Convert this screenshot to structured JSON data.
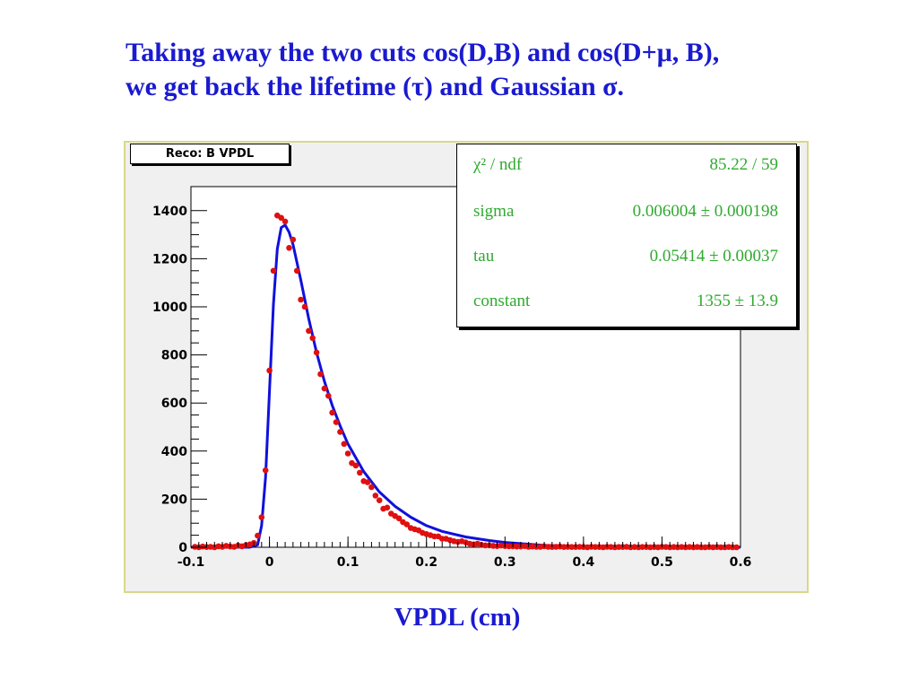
{
  "title": {
    "line1": "Taking away the two cuts cos(D,B) and cos(D+μ, B),",
    "line2": "we get back the lifetime (τ) and Gaussian σ."
  },
  "histogram_label": "Reco: B VPDL",
  "stats": [
    {
      "key": "χ² / ndf",
      "value": "85.22 / 59"
    },
    {
      "key": "sigma",
      "value": "0.006004 ± 0.000198"
    },
    {
      "key": "tau",
      "value": "0.05414 ± 0.00037"
    },
    {
      "key": "constant",
      "value": "1355 ± 13.9"
    }
  ],
  "colors": {
    "title": "#1a1ad0",
    "points": "#e01010",
    "fit": "#1010dd",
    "stats_text": "#2faa2f"
  },
  "chart_data": {
    "type": "scatter",
    "title": "Reco: B VPDL",
    "xlabel": "VPDL (cm)",
    "ylabel": "",
    "xlim": [
      -0.1,
      0.6
    ],
    "ylim": [
      0,
      1500
    ],
    "xticks": [
      -0.1,
      0,
      0.1,
      0.2,
      0.3,
      0.4,
      0.5,
      0.6
    ],
    "xtick_labels": [
      "-0.1",
      "0",
      "0.1",
      "0.2",
      "0.3",
      "0.4",
      "0.5",
      "0.6"
    ],
    "yticks": [
      0,
      200,
      400,
      600,
      800,
      1000,
      1200,
      1400
    ],
    "ytick_labels": [
      "0",
      "200",
      "400",
      "600",
      "800",
      "1000",
      "1200",
      "1400"
    ],
    "grid": false,
    "series": [
      {
        "kind": "points",
        "x": [
          -0.095,
          -0.09,
          -0.085,
          -0.08,
          -0.075,
          -0.07,
          -0.065,
          -0.06,
          -0.055,
          -0.05,
          -0.045,
          -0.04,
          -0.035,
          -0.03,
          -0.025,
          -0.02,
          -0.015,
          -0.01,
          -0.005,
          0.0,
          0.005,
          0.01,
          0.015,
          0.02,
          0.025,
          0.03,
          0.035,
          0.04,
          0.045,
          0.05,
          0.055,
          0.06,
          0.065,
          0.07,
          0.075,
          0.08,
          0.085,
          0.09,
          0.095,
          0.1,
          0.105,
          0.11,
          0.115,
          0.12,
          0.125,
          0.13,
          0.135,
          0.14,
          0.145,
          0.15,
          0.155,
          0.16,
          0.165,
          0.17,
          0.175,
          0.18,
          0.185,
          0.19,
          0.195,
          0.2,
          0.205,
          0.21,
          0.215,
          0.22,
          0.225,
          0.23,
          0.235,
          0.24,
          0.245,
          0.25,
          0.255,
          0.26,
          0.265,
          0.27,
          0.275,
          0.28,
          0.285,
          0.29,
          0.295,
          0.3,
          0.305,
          0.31,
          0.315,
          0.32,
          0.325,
          0.33,
          0.335,
          0.34,
          0.345,
          0.35,
          0.355,
          0.36,
          0.365,
          0.37,
          0.375,
          0.38,
          0.385,
          0.39,
          0.395,
          0.4,
          0.405,
          0.41,
          0.415,
          0.42,
          0.425,
          0.43,
          0.435,
          0.44,
          0.445,
          0.45,
          0.455,
          0.46,
          0.465,
          0.47,
          0.475,
          0.48,
          0.485,
          0.49,
          0.495,
          0.5,
          0.505,
          0.51,
          0.515,
          0.52,
          0.525,
          0.53,
          0.535,
          0.54,
          0.545,
          0.55,
          0.555,
          0.56,
          0.565,
          0.57,
          0.575,
          0.58,
          0.585,
          0.59,
          0.595
        ],
        "y": [
          2,
          0,
          3,
          1,
          2,
          0,
          4,
          2,
          6,
          3,
          2,
          7,
          4,
          9,
          12,
          18,
          48,
          125,
          320,
          735,
          1150,
          1380,
          1370,
          1355,
          1245,
          1280,
          1150,
          1030,
          1000,
          900,
          870,
          810,
          720,
          660,
          630,
          560,
          520,
          480,
          430,
          390,
          350,
          340,
          310,
          275,
          270,
          250,
          215,
          195,
          160,
          165,
          140,
          130,
          120,
          105,
          95,
          80,
          75,
          70,
          60,
          55,
          50,
          45,
          45,
          35,
          35,
          30,
          25,
          22,
          25,
          20,
          15,
          12,
          15,
          10,
          8,
          8,
          6,
          5,
          7,
          5,
          4,
          4,
          3,
          3,
          5,
          2,
          3,
          2,
          2,
          4,
          2,
          1,
          2,
          3,
          1,
          2,
          1,
          1,
          2,
          1,
          0,
          2,
          1,
          1,
          0,
          2,
          1,
          0,
          1,
          1,
          2,
          0,
          1,
          0,
          1,
          1,
          0,
          1,
          0,
          2,
          1,
          0,
          1,
          0,
          1,
          0,
          1,
          0,
          1,
          0,
          0,
          1,
          0,
          1,
          0,
          0,
          1,
          0,
          0
        ]
      },
      {
        "kind": "fit",
        "x": [
          -0.1,
          -0.05,
          -0.025,
          -0.015,
          -0.01,
          -0.005,
          0.0,
          0.005,
          0.01,
          0.015,
          0.02,
          0.025,
          0.03,
          0.04,
          0.05,
          0.06,
          0.07,
          0.08,
          0.09,
          0.1,
          0.12,
          0.14,
          0.16,
          0.18,
          0.2,
          0.22,
          0.25,
          0.28,
          0.3,
          0.35,
          0.4,
          0.5,
          0.6
        ],
        "y": [
          0,
          0,
          0,
          10,
          90,
          290,
          650,
          1010,
          1240,
          1330,
          1340,
          1310,
          1260,
          1110,
          950,
          810,
          690,
          590,
          505,
          430,
          315,
          230,
          170,
          125,
          90,
          66,
          43,
          28,
          20,
          8,
          3,
          0,
          0
        ]
      }
    ]
  }
}
